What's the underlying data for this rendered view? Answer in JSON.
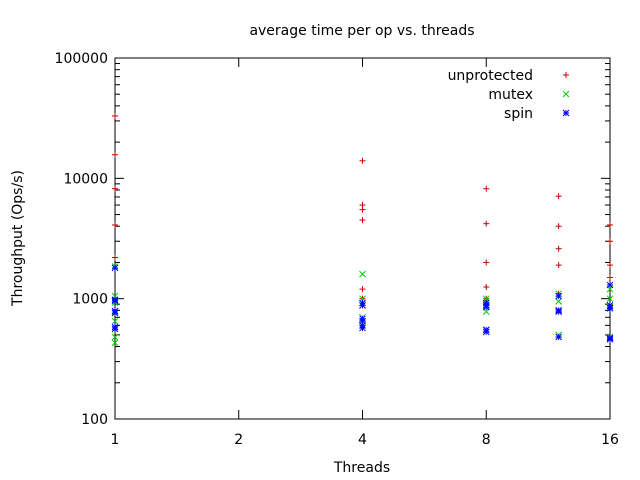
{
  "chart_data": {
    "type": "scatter",
    "title": "average time per op vs. threads",
    "xlabel": "Threads",
    "ylabel": "Throughput (Ops/s)",
    "xscale": "log2",
    "yscale": "log10",
    "xlim": [
      1,
      16
    ],
    "ylim": [
      100,
      100000
    ],
    "xticks": [
      {
        "value": 1,
        "label": "1"
      },
      {
        "value": 2,
        "label": "2"
      },
      {
        "value": 4,
        "label": "4"
      },
      {
        "value": 8,
        "label": "8"
      },
      {
        "value": 16,
        "label": "16"
      }
    ],
    "yticks": [
      {
        "value": 100,
        "label": "100"
      },
      {
        "value": 1000,
        "label": "1000"
      },
      {
        "value": 10000,
        "label": "10000"
      },
      {
        "value": 100000,
        "label": "100000"
      }
    ],
    "grid": false,
    "legend_position": "top-right",
    "series": [
      {
        "name": "unprotected",
        "marker": "plus",
        "color": "#cc0000",
        "points": [
          [
            1,
            33000
          ],
          [
            1,
            15700
          ],
          [
            1,
            8200
          ],
          [
            1,
            4100
          ],
          [
            1,
            2200
          ],
          [
            1,
            1800
          ],
          [
            1,
            1000
          ],
          [
            4,
            14000
          ],
          [
            4,
            6000
          ],
          [
            4,
            5500
          ],
          [
            4,
            4500
          ],
          [
            4,
            1200
          ],
          [
            4,
            1000
          ],
          [
            8,
            8200
          ],
          [
            8,
            4200
          ],
          [
            8,
            2000
          ],
          [
            8,
            1250
          ],
          [
            8,
            1000
          ],
          [
            12,
            7100
          ],
          [
            12,
            4000
          ],
          [
            12,
            2600
          ],
          [
            12,
            1900
          ],
          [
            12,
            1100
          ],
          [
            16,
            4100
          ],
          [
            16,
            3000
          ],
          [
            16,
            1900
          ],
          [
            16,
            1500
          ],
          [
            16,
            1300
          ]
        ]
      },
      {
        "name": "mutex",
        "marker": "cross",
        "color": "#00cc00",
        "points": [
          [
            1,
            1850
          ],
          [
            1,
            1050
          ],
          [
            1,
            930
          ],
          [
            1,
            780
          ],
          [
            1,
            650
          ],
          [
            1,
            480
          ],
          [
            1,
            430
          ],
          [
            4,
            1600
          ],
          [
            4,
            1000
          ],
          [
            4,
            880
          ],
          [
            4,
            700
          ],
          [
            4,
            600
          ],
          [
            8,
            1000
          ],
          [
            8,
            950
          ],
          [
            8,
            880
          ],
          [
            8,
            780
          ],
          [
            8,
            550
          ],
          [
            12,
            1100
          ],
          [
            12,
            950
          ],
          [
            12,
            800
          ],
          [
            12,
            500
          ],
          [
            16,
            1200
          ],
          [
            16,
            1000
          ],
          [
            16,
            850
          ],
          [
            16,
            480
          ]
        ]
      },
      {
        "name": "spin",
        "marker": "star",
        "color": "#0000ff",
        "points": [
          [
            1,
            1800
          ],
          [
            1,
            980
          ],
          [
            1,
            960
          ],
          [
            1,
            790
          ],
          [
            1,
            760
          ],
          [
            1,
            580
          ],
          [
            1,
            560
          ],
          [
            4,
            920
          ],
          [
            4,
            880
          ],
          [
            4,
            680
          ],
          [
            4,
            650
          ],
          [
            4,
            600
          ],
          [
            4,
            570
          ],
          [
            8,
            920
          ],
          [
            8,
            880
          ],
          [
            8,
            850
          ],
          [
            8,
            550
          ],
          [
            8,
            530
          ],
          [
            12,
            1050
          ],
          [
            12,
            800
          ],
          [
            12,
            780
          ],
          [
            12,
            480
          ],
          [
            16,
            1300
          ],
          [
            16,
            880
          ],
          [
            16,
            830
          ],
          [
            16,
            470
          ],
          [
            16,
            460
          ]
        ]
      }
    ]
  }
}
